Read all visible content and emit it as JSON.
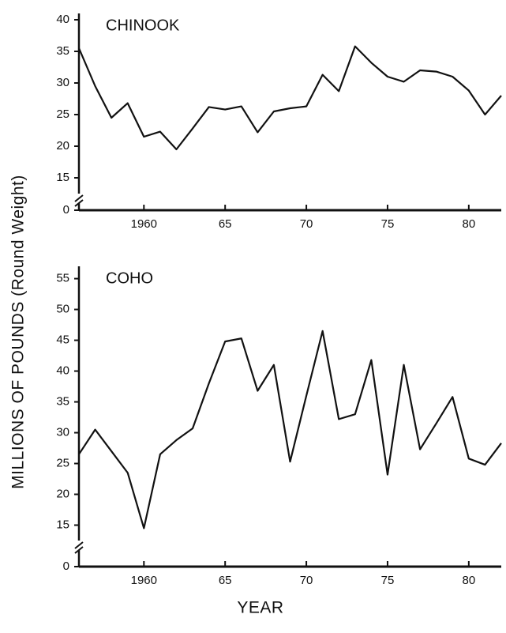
{
  "chart_data": [
    {
      "type": "line",
      "title": "CHINOOK",
      "ylabel": "MILLIONS OF POUNDS (Round Weight)",
      "x": [
        1956,
        1957,
        1958,
        1959,
        1960,
        1961,
        1962,
        1963,
        1964,
        1965,
        1966,
        1967,
        1968,
        1969,
        1970,
        1971,
        1972,
        1973,
        1974,
        1975,
        1976,
        1977,
        1978,
        1979,
        1980,
        1981,
        1982
      ],
      "series": [
        {
          "color": "#111111",
          "values": [
            35.5,
            29.5,
            24.5,
            26.8,
            21.5,
            22.3,
            19.5,
            22.8,
            26.2,
            25.8,
            26.3,
            22.2,
            25.5,
            26,
            26.3,
            31.3,
            28.7,
            35.8,
            33.2,
            31,
            30.2,
            32,
            31.8,
            31,
            28.8,
            25,
            28
          ]
        }
      ],
      "xlim": [
        1956,
        1982
      ],
      "xticks": [
        1960,
        {
          "value": 1965,
          "label": "65"
        },
        {
          "value": 1970,
          "label": "70"
        },
        {
          "value": 1975,
          "label": "75"
        },
        {
          "value": 1980,
          "label": "80"
        }
      ],
      "ylim": [
        12.5,
        41
      ],
      "yticks": [
        15,
        20,
        25,
        30,
        35,
        40
      ],
      "ybreak": 0
    },
    {
      "type": "line",
      "title": "COHO",
      "xlabel": "YEAR",
      "x": [
        1956,
        1957,
        1958,
        1959,
        1960,
        1961,
        1962,
        1963,
        1964,
        1965,
        1966,
        1967,
        1968,
        1969,
        1970,
        1971,
        1972,
        1973,
        1974,
        1975,
        1976,
        1977,
        1978,
        1979,
        1980,
        1981,
        1982
      ],
      "series": [
        {
          "color": "#111111",
          "values": [
            26.5,
            30.5,
            27,
            23.5,
            14.5,
            26.5,
            28.8,
            30.7,
            38,
            44.8,
            45.3,
            36.8,
            41,
            25.3,
            36,
            46.5,
            32.2,
            33,
            41.8,
            23.2,
            41,
            27.3,
            31.5,
            35.8,
            25.8,
            24.8,
            28.3
          ]
        }
      ],
      "xlim": [
        1956,
        1982
      ],
      "xticks": [
        1960,
        {
          "value": 1965,
          "label": "65"
        },
        {
          "value": 1970,
          "label": "70"
        },
        {
          "value": 1975,
          "label": "75"
        },
        {
          "value": 1980,
          "label": "80"
        }
      ],
      "ylim": [
        12.5,
        57
      ],
      "yticks": [
        15,
        20,
        25,
        30,
        35,
        40,
        45,
        50,
        55
      ],
      "ybreak": 0
    }
  ]
}
